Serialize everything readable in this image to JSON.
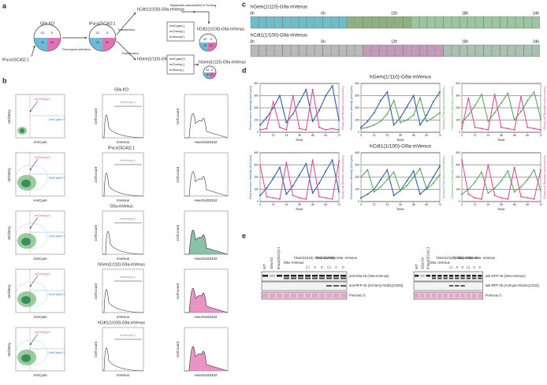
{
  "panel_a": {
    "label": "a",
    "start": "tFucci(SCA)2.1",
    "ko": "G9a KO",
    "puro": "Puromycin selection",
    "parent": "tFucci(SCA)2.1",
    "transfection_top": "Transfection",
    "transfection_bottom": "Transfection",
    "top_construct": "hCdt1(1/100)-G9a-mVenus",
    "blast": "Blasticidin selection",
    "facs": "FACS Sorting",
    "top_gate": [
      "AmCyan(-)",
      "mCherry(-)",
      "mVenus(+)"
    ],
    "top_result": "hCdt1(1/100)-G9a-mVenus",
    "bottom_construct": "hGem(1/110)-G9a-mVenus",
    "bottom_gate": [
      "AmCyan(+)",
      "mCherry(-)",
      "mVenus(-)"
    ],
    "bottom_result": "hGem(1/110)-G9a-mVenus",
    "phases": [
      "G1",
      "S",
      "G2",
      "M"
    ]
  },
  "panel_b": {
    "label": "b",
    "rows": [
      "G9a KO",
      "tFucci(SCA)2.1",
      "G9a-mVenus",
      "hGem(1/110)-G9a-mVenus",
      "hCdt1(1/100)-G9a-mVenus"
    ],
    "scatter_x": "AmCyan",
    "scatter_y": "mCherry",
    "gate_mcherry": "mCherry(+)",
    "gate_amcyan": "AmCyan(+)",
    "hist_y": "Cell count",
    "hist_x": "mVenus",
    "hist_gate": "mVenus(+)",
    "dna_x": "Hoechst33342"
  },
  "panel_c": {
    "label": "c",
    "strips": [
      {
        "title": "hGem(1/110)-G9a-mVenus",
        "times": [
          "0h",
          "6h",
          "12h",
          "18h",
          "24h"
        ]
      },
      {
        "title": "hCdt1(1/100)-G9a-mVenus",
        "times": [
          "0h",
          "6h",
          "12h",
          "18h",
          "24h"
        ]
      }
    ]
  },
  "panel_d": {
    "label": "d",
    "x_label": "hour",
    "hours": [
      0,
      6,
      12,
      18,
      24,
      30,
      36,
      42,
      48,
      54,
      60,
      66,
      72
    ],
    "xlim": [
      0,
      72
    ],
    "xticks": [
      0,
      12,
      24,
      36,
      48,
      60,
      72
    ],
    "ylim": [
      0,
      400
    ],
    "yticks": [
      0,
      100,
      200,
      300,
      400
    ],
    "y_labels": [
      "Fluorescence intensity (AmCyan)",
      "Fluorescence intensity (mVenus)",
      "Fluorescence intensity (mCherry)"
    ],
    "groups": [
      {
        "title": "hGem(1/110)-G9a-mVenus",
        "plots": [
          {
            "series": [
              {
                "color": "#2f5fa8",
                "values": [
                  60,
                  120,
                  200,
                  300,
                  80,
                  150,
                  250,
                  350,
                  90,
                  180,
                  300,
                  380,
                  100
                ]
              },
              {
                "color": "#d94fa0",
                "values": [
                  20,
                  30,
                  250,
                  40,
                  20,
                  300,
                  30,
                  20,
                  350,
                  40,
                  20,
                  30,
                  20
                ]
              }
            ]
          },
          {
            "series": [
              {
                "color": "#2f5fa8",
                "values": [
                  40,
                  90,
                  160,
                  260,
                  330,
                  60,
                  120,
                  210,
                  300,
                  60,
                  140,
                  250,
                  330
                ]
              },
              {
                "color": "#5aa85a",
                "values": [
                  30,
                  40,
                  60,
                  90,
                  150,
                  260,
                  80,
                  100,
                  140,
                  280,
                  90,
                  120,
                  160
                ]
              }
            ]
          },
          {
            "series": [
              {
                "color": "#5aa85a",
                "values": [
                  80,
                  140,
                  220,
                  310,
                  90,
                  160,
                  240,
                  320,
                  100,
                  170,
                  260,
                  330,
                  110
                ]
              },
              {
                "color": "#d94fa0",
                "values": [
                  30,
                  280,
                  40,
                  30,
                  20,
                  310,
                  40,
                  30,
                  20,
                  290,
                  40,
                  30,
                  20
                ]
              }
            ]
          }
        ]
      },
      {
        "title": "hCdt1(1/100)-G9a-mVenus",
        "plots": [
          {
            "series": [
              {
                "color": "#2f5fa8",
                "values": [
                  50,
                  110,
                  190,
                  280,
                  60,
                  130,
                  220,
                  310,
                  70,
                  150,
                  250,
                  340,
                  80
                ]
              },
              {
                "color": "#d94fa0",
                "values": [
                  300,
                  40,
                  30,
                  20,
                  320,
                  50,
                  30,
                  20,
                  340,
                  40,
                  30,
                  20,
                  330
                ]
              }
            ]
          },
          {
            "series": [
              {
                "color": "#2f5fa8",
                "values": [
                  30,
                  60,
                  100,
                  180,
                  260,
                  50,
                  90,
                  170,
                  250,
                  60,
                  110,
                  200,
                  290
                ]
              },
              {
                "color": "#5aa85a",
                "values": [
                  200,
                  260,
                  80,
                  120,
                  180,
                  240,
                  90,
                  130,
                  200,
                  270,
                  100,
                  150,
                  220
                ]
              }
            ]
          },
          {
            "series": [
              {
                "color": "#5aa85a",
                "values": [
                  60,
                  100,
                  160,
                  240,
                  70,
                  110,
                  170,
                  250,
                  80,
                  120,
                  180,
                  260,
                  90
                ]
              },
              {
                "color": "#d94fa0",
                "values": [
                  340,
                  60,
                  30,
                  20,
                  300,
                  50,
                  30,
                  20,
                  280,
                  40,
                  30,
                  20,
                  260
                ]
              }
            ]
          }
        ]
      }
    ]
  },
  "panel_e": {
    "label": "e",
    "blots": [
      {
        "lanes": [
          "WT",
          "G9a KO",
          "tFucci(SCA)2.1"
        ],
        "groups": [
          "G9a -mVenus",
          "hGem(1/110) -G9a -mVenus",
          "hCdt1(1/100) -G9a -mVenus"
        ],
        "sub": [
          "(-)",
          "A",
          "C",
          "(-)",
          "A",
          "C"
        ],
        "rows": [
          "anti-G9a Ab (G9a-mVenus)",
          "anti-RFP Ab (mCherry-hCdt1(1/100))",
          "Ponceau S"
        ]
      },
      {
        "lanes": [
          "WT",
          "G9a KO",
          "tFucci(SCA)2.1"
        ],
        "groups": [
          "G9a -mVenus",
          "hGem(1/110) -G9a -mVenus",
          "hCdt1(1/100) -G9a -mVenus"
        ],
        "sub": [
          "(-)",
          "A",
          "C",
          "(-)",
          "A",
          "C"
        ],
        "rows": [
          "anti-GFP Ab (G9a-mVenus)",
          "anti-RFP Ab (AmCyan-hGem(1/110))",
          "Ponceau S"
        ]
      }
    ]
  }
}
